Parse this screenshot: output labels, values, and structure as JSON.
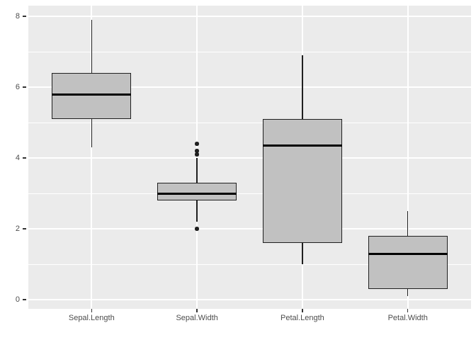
{
  "chart_data": {
    "type": "boxplot",
    "title": "",
    "xlabel": "",
    "ylabel": "",
    "categories": [
      "Sepal.Length",
      "Sepal.Width",
      "Petal.Length",
      "Petal.Width"
    ],
    "series": [
      {
        "name": "Sepal.Length",
        "whisker_low": 4.3,
        "q1": 5.1,
        "median": 5.8,
        "q3": 6.4,
        "whisker_high": 7.9,
        "outliers": []
      },
      {
        "name": "Sepal.Width",
        "whisker_low": 2.2,
        "q1": 2.8,
        "median": 3.0,
        "q3": 3.3,
        "whisker_high": 4.0,
        "outliers": [
          2.0,
          4.1,
          4.2,
          4.4
        ]
      },
      {
        "name": "Petal.Length",
        "whisker_low": 1.0,
        "q1": 1.6,
        "median": 4.35,
        "q3": 5.1,
        "whisker_high": 6.9,
        "outliers": []
      },
      {
        "name": "Petal.Width",
        "whisker_low": 0.1,
        "q1": 0.3,
        "median": 1.3,
        "q3": 1.8,
        "whisker_high": 2.5,
        "outliers": []
      }
    ],
    "y_ticks": [
      0,
      2,
      4,
      6,
      8
    ],
    "y_tick_labels": [
      "0",
      "2",
      "4",
      "6",
      "8"
    ],
    "y_minor_ticks": [
      1,
      3,
      5,
      7
    ],
    "ylim": [
      -0.26,
      8.3
    ],
    "grid": "major-and-minor",
    "legend": "none",
    "style": "ggplot2-grey-theme"
  },
  "colors": {
    "page_bg": "#FFFFFF",
    "panel_bg": "#EBEBEB",
    "grid_major": "#FFFFFF",
    "grid_minor": "#FFFFFF",
    "box_fill": "#C1C1C1",
    "box_border": "#1F1F1F",
    "median": "#000000",
    "outlier": "#1F1F1F",
    "axis_text": "#4D4D4D",
    "tick_mark": "#333333"
  }
}
